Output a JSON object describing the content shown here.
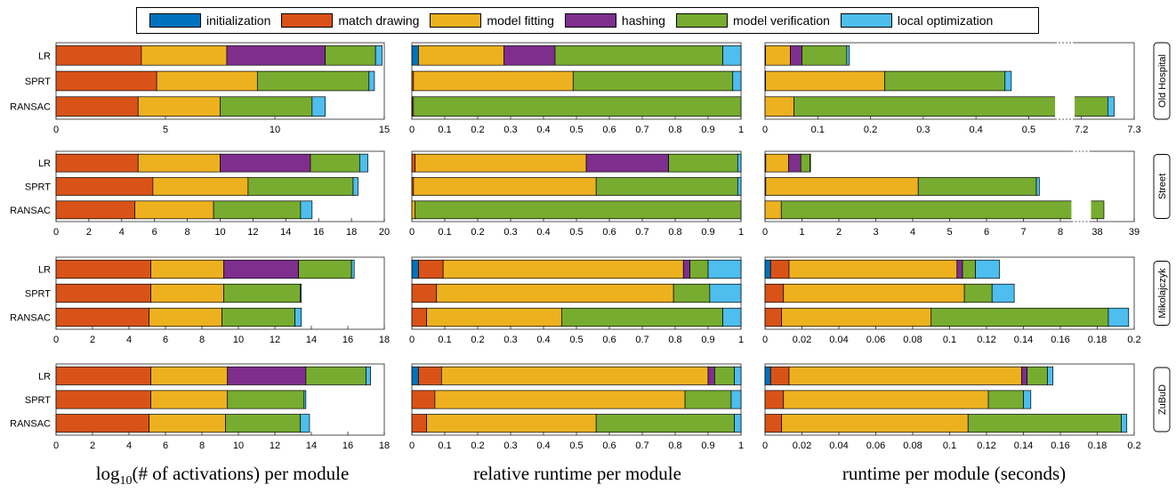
{
  "legend": [
    {
      "label": "initialization",
      "color": "#0072BD"
    },
    {
      "label": "match drawing",
      "color": "#D95319"
    },
    {
      "label": "model fitting",
      "color": "#EDB120"
    },
    {
      "label": "hashing",
      "color": "#7E2F8E"
    },
    {
      "label": "model verification",
      "color": "#77AC30"
    },
    {
      "label": "local optimization",
      "color": "#4DBEEE"
    }
  ],
  "captions": {
    "col0_prefix": "log",
    "col0_sub": "10",
    "col0_suffix": "(# of activations) per module",
    "col1": "relative runtime per module",
    "col2": "runtime per module (seconds)"
  },
  "chart_data": {
    "type": "bar",
    "orientation": "horizontal-stacked",
    "series_names": [
      "initialization",
      "match drawing",
      "model fitting",
      "hashing",
      "model verification",
      "local optimization"
    ],
    "datasets": [
      {
        "name": "Old Hospital",
        "panels": [
          {
            "xlim": [
              0,
              15
            ],
            "xticks": [
              "0",
              "5",
              "10",
              "15"
            ],
            "rows": [
              {
                "label": "LR",
                "values": [
                  0,
                  3.9,
                  3.9,
                  4.5,
                  2.3,
                  0.3
                ]
              },
              {
                "label": "SPRT",
                "values": [
                  0,
                  4.6,
                  4.6,
                  0,
                  5.1,
                  0.25
                ]
              },
              {
                "label": "RANSAC",
                "values": [
                  0,
                  3.75,
                  3.75,
                  0,
                  4.2,
                  0.6
                ]
              }
            ]
          },
          {
            "xlim": [
              0,
              1
            ],
            "xticks": [
              "0",
              "0.1",
              "0.2",
              "0.3",
              "0.4",
              "0.5",
              "0.6",
              "0.7",
              "0.8",
              "0.9",
              "1"
            ],
            "rows": [
              {
                "label": "LR",
                "values": [
                  0.02,
                  0.0,
                  0.26,
                  0.155,
                  0.51,
                  0.055
                ]
              },
              {
                "label": "SPRT",
                "values": [
                  0,
                  0.005,
                  0.485,
                  0,
                  0.485,
                  0.025
                ]
              },
              {
                "label": "RANSAC",
                "values": [
                  0,
                  0.002,
                  0.003,
                  0,
                  0.995,
                  0
                ]
              }
            ]
          },
          {
            "xlim": [
              0,
              7.3
            ],
            "xticks": [
              "0",
              "0.1",
              "0.2",
              "0.3",
              "0.4",
              "0.5",
              "7.2",
              "7.3"
            ],
            "axis_break": [
              0.55,
              7.15
            ],
            "rows": [
              {
                "label": "LR",
                "values": [
                  0.001,
                  0.0,
                  0.047,
                  0.022,
                  0.085,
                  0.005
                ]
              },
              {
                "label": "SPRT",
                "values": [
                  0,
                  0.001,
                  0.226,
                  0,
                  0.228,
                  0.012
                ]
              },
              {
                "label": "RANSAC",
                "values": [
                  0,
                  0.0,
                  0.055,
                  0,
                  7.195,
                  0.012
                ]
              }
            ]
          }
        ]
      },
      {
        "name": "Street",
        "panels": [
          {
            "xlim": [
              0,
              20
            ],
            "xticks": [
              "0",
              "2",
              "4",
              "6",
              "8",
              "10",
              "12",
              "14",
              "16",
              "18",
              "20"
            ],
            "rows": [
              {
                "label": "LR",
                "values": [
                  0,
                  5.0,
                  5.0,
                  5.5,
                  3.0,
                  0.5
                ]
              },
              {
                "label": "SPRT",
                "values": [
                  0,
                  5.9,
                  5.8,
                  0,
                  6.4,
                  0.3
                ]
              },
              {
                "label": "RANSAC",
                "values": [
                  0,
                  4.8,
                  4.8,
                  0,
                  5.3,
                  0.7
                ]
              }
            ]
          },
          {
            "xlim": [
              0,
              1
            ],
            "xticks": [
              "0",
              "0.1",
              "0.2",
              "0.3",
              "0.4",
              "0.5",
              "0.6",
              "0.7",
              "0.8",
              "0.9",
              "1"
            ],
            "rows": [
              {
                "label": "LR",
                "values": [
                  0,
                  0.01,
                  0.52,
                  0.25,
                  0.21,
                  0.01
                ]
              },
              {
                "label": "SPRT",
                "values": [
                  0,
                  0.005,
                  0.555,
                  0,
                  0.43,
                  0.01
                ]
              },
              {
                "label": "RANSAC",
                "values": [
                  0,
                  0.0,
                  0.01,
                  0,
                  0.99,
                  0
                ]
              }
            ]
          },
          {
            "xlim": [
              0,
              39
            ],
            "xticks": [
              "0",
              "1",
              "2",
              "3",
              "4",
              "5",
              "6",
              "7",
              "8",
              "38",
              "39"
            ],
            "axis_break": [
              8.3,
              37.8
            ],
            "rows": [
              {
                "label": "LR",
                "values": [
                  0,
                  0.02,
                  0.62,
                  0.33,
                  0.25,
                  0.01
                ]
              },
              {
                "label": "SPRT",
                "values": [
                  0,
                  0.02,
                  4.13,
                  0,
                  3.2,
                  0.08
                ]
              },
              {
                "label": "RANSAC",
                "values": [
                  0,
                  0.0,
                  0.44,
                  0,
                  37.74,
                  0
                ]
              }
            ]
          }
        ]
      },
      {
        "name": "Mikolajczyk",
        "panels": [
          {
            "xlim": [
              0,
              18
            ],
            "xticks": [
              "0",
              "2",
              "4",
              "6",
              "8",
              "10",
              "12",
              "14",
              "16",
              "18"
            ],
            "rows": [
              {
                "label": "LR",
                "values": [
                  0,
                  5.2,
                  4.0,
                  4.1,
                  2.9,
                  0.15
                ]
              },
              {
                "label": "SPRT",
                "values": [
                  0,
                  5.2,
                  4.0,
                  0,
                  4.2,
                  0.05
                ]
              },
              {
                "label": "RANSAC",
                "values": [
                  0,
                  5.1,
                  4.0,
                  0,
                  4.0,
                  0.35
                ]
              }
            ]
          },
          {
            "xlim": [
              0,
              1
            ],
            "xticks": [
              "0",
              "0.1",
              "0.2",
              "0.3",
              "0.4",
              "0.5",
              "0.6",
              "0.7",
              "0.8",
              "0.9",
              "1"
            ],
            "rows": [
              {
                "label": "LR",
                "values": [
                  0.02,
                  0.075,
                  0.73,
                  0.02,
                  0.055,
                  0.1
                ]
              },
              {
                "label": "SPRT",
                "values": [
                  0,
                  0.075,
                  0.72,
                  0,
                  0.11,
                  0.095
                ]
              },
              {
                "label": "RANSAC",
                "values": [
                  0,
                  0.045,
                  0.41,
                  0,
                  0.49,
                  0.055
                ]
              }
            ]
          },
          {
            "xlim": [
              0,
              0.2
            ],
            "xticks": [
              "0",
              "0.02",
              "0.04",
              "0.06",
              "0.08",
              "0.1",
              "0.12",
              "0.14",
              "0.16",
              "0.18",
              "0.2"
            ],
            "rows": [
              {
                "label": "LR",
                "values": [
                  0.003,
                  0.01,
                  0.091,
                  0.003,
                  0.007,
                  0.013
                ]
              },
              {
                "label": "SPRT",
                "values": [
                  0,
                  0.01,
                  0.098,
                  0,
                  0.015,
                  0.012
                ]
              },
              {
                "label": "RANSAC",
                "values": [
                  0,
                  0.009,
                  0.081,
                  0,
                  0.096,
                  0.011
                ]
              }
            ]
          }
        ]
      },
      {
        "name": "ZuBuD",
        "panels": [
          {
            "xlim": [
              0,
              18
            ],
            "xticks": [
              "0",
              "2",
              "4",
              "6",
              "8",
              "10",
              "12",
              "14",
              "16",
              "18"
            ],
            "rows": [
              {
                "label": "LR",
                "values": [
                  0,
                  5.2,
                  4.2,
                  4.3,
                  3.3,
                  0.25
                ]
              },
              {
                "label": "SPRT",
                "values": [
                  0,
                  5.2,
                  4.2,
                  0,
                  4.2,
                  0.1
                ]
              },
              {
                "label": "RANSAC",
                "values": [
                  0,
                  5.1,
                  4.2,
                  0,
                  4.1,
                  0.5
                ]
              }
            ]
          },
          {
            "xlim": [
              0,
              1
            ],
            "xticks": [
              "0",
              "0.1",
              "0.2",
              "0.3",
              "0.4",
              "0.5",
              "0.6",
              "0.7",
              "0.8",
              "0.9",
              "1"
            ],
            "rows": [
              {
                "label": "LR",
                "values": [
                  0.02,
                  0.07,
                  0.81,
                  0.02,
                  0.06,
                  0.02
                ]
              },
              {
                "label": "SPRT",
                "values": [
                  0,
                  0.07,
                  0.76,
                  0,
                  0.14,
                  0.03
                ]
              },
              {
                "label": "RANSAC",
                "values": [
                  0,
                  0.045,
                  0.515,
                  0,
                  0.42,
                  0.02
                ]
              }
            ]
          },
          {
            "xlim": [
              0,
              0.2
            ],
            "xticks": [
              "0",
              "0.02",
              "0.04",
              "0.06",
              "0.08",
              "0.1",
              "0.12",
              "0.14",
              "0.16",
              "0.18",
              "0.2"
            ],
            "rows": [
              {
                "label": "LR",
                "values": [
                  0.003,
                  0.01,
                  0.126,
                  0.003,
                  0.011,
                  0.003
                ]
              },
              {
                "label": "SPRT",
                "values": [
                  0,
                  0.01,
                  0.111,
                  0,
                  0.019,
                  0.004
                ]
              },
              {
                "label": "RANSAC",
                "values": [
                  0,
                  0.009,
                  0.101,
                  0,
                  0.083,
                  0.003
                ]
              }
            ]
          }
        ]
      }
    ]
  }
}
